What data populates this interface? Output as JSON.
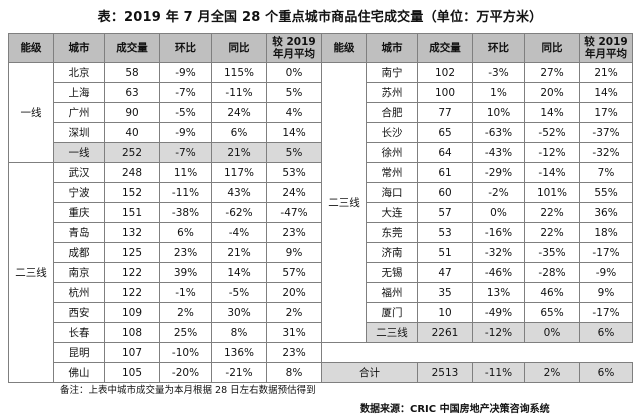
{
  "title": "表：2019 年 7 月全国 28 个重点城市商品住宅成交量（单位：万平方米）",
  "headers": [
    "能级",
    "城市",
    "成交量",
    "环比",
    "同比",
    "较 2019 年月平均"
  ],
  "left": [
    {
      "tier": "一线",
      "city": "北京",
      "vol": "58",
      "mom": "-9%",
      "yoy": "115%",
      "avg": "0%"
    },
    {
      "tier": "",
      "city": "上海",
      "vol": "63",
      "mom": "-7%",
      "yoy": "-11%",
      "avg": "5%"
    },
    {
      "tier": "",
      "city": "广州",
      "vol": "90",
      "mom": "-5%",
      "yoy": "24%",
      "avg": "4%"
    },
    {
      "tier": "",
      "city": "深圳",
      "vol": "40",
      "mom": "-9%",
      "yoy": "6%",
      "avg": "14%"
    },
    {
      "tier": "",
      "city": "一线",
      "vol": "252",
      "mom": "-7%",
      "yoy": "21%",
      "avg": "5%"
    },
    {
      "tier": "二三线",
      "city": "武汉",
      "vol": "248",
      "mom": "11%",
      "yoy": "117%",
      "avg": "53%"
    },
    {
      "tier": "",
      "city": "宁波",
      "vol": "152",
      "mom": "-11%",
      "yoy": "43%",
      "avg": "24%"
    },
    {
      "tier": "",
      "city": "重庆",
      "vol": "151",
      "mom": "-38%",
      "yoy": "-62%",
      "avg": "-47%"
    },
    {
      "tier": "",
      "city": "青岛",
      "vol": "132",
      "mom": "6%",
      "yoy": "-4%",
      "avg": "23%"
    },
    {
      "tier": "",
      "city": "成都",
      "vol": "125",
      "mom": "23%",
      "yoy": "21%",
      "avg": "9%"
    },
    {
      "tier": "",
      "city": "南京",
      "vol": "122",
      "mom": "39%",
      "yoy": "14%",
      "avg": "57%"
    },
    {
      "tier": "",
      "city": "杭州",
      "vol": "122",
      "mom": "-1%",
      "yoy": "-5%",
      "avg": "20%"
    },
    {
      "tier": "",
      "city": "西安",
      "vol": "109",
      "mom": "2%",
      "yoy": "30%",
      "avg": "2%"
    },
    {
      "tier": "",
      "city": "长春",
      "vol": "108",
      "mom": "25%",
      "yoy": "8%",
      "avg": "31%"
    },
    {
      "tier": "",
      "city": "昆明",
      "vol": "107",
      "mom": "-10%",
      "yoy": "136%",
      "avg": "23%"
    },
    {
      "tier": "",
      "city": "佛山",
      "vol": "105",
      "mom": "-20%",
      "yoy": "-21%",
      "avg": "8%"
    }
  ],
  "right": [
    {
      "tier": "",
      "city": "南宁",
      "vol": "102",
      "mom": "-3%",
      "yoy": "27%",
      "avg": "21%"
    },
    {
      "tier": "",
      "city": "苏州",
      "vol": "100",
      "mom": "1%",
      "yoy": "20%",
      "avg": "14%"
    },
    {
      "tier": "",
      "city": "合肥",
      "vol": "77",
      "mom": "10%",
      "yoy": "14%",
      "avg": "17%"
    },
    {
      "tier": "",
      "city": "长沙",
      "vol": "65",
      "mom": "-63%",
      "yoy": "-52%",
      "avg": "-37%"
    },
    {
      "tier": "",
      "city": "徐州",
      "vol": "64",
      "mom": "-43%",
      "yoy": "-12%",
      "avg": "-32%"
    },
    {
      "tier": "二三线",
      "city": "常州",
      "vol": "61",
      "mom": "-29%",
      "yoy": "-14%",
      "avg": "7%"
    },
    {
      "tier": "",
      "city": "海口",
      "vol": "60",
      "mom": "-2%",
      "yoy": "101%",
      "avg": "55%"
    },
    {
      "tier": "",
      "city": "大连",
      "vol": "57",
      "mom": "0%",
      "yoy": "22%",
      "avg": "36%"
    },
    {
      "tier": "",
      "city": "东莞",
      "vol": "53",
      "mom": "-16%",
      "yoy": "22%",
      "avg": "18%"
    },
    {
      "tier": "",
      "city": "济南",
      "vol": "51",
      "mom": "-32%",
      "yoy": "-35%",
      "avg": "-17%"
    },
    {
      "tier": "",
      "city": "无锡",
      "vol": "47",
      "mom": "-46%",
      "yoy": "-28%",
      "avg": "-9%"
    },
    {
      "tier": "",
      "city": "福州",
      "vol": "35",
      "mom": "13%",
      "yoy": "46%",
      "avg": "9%"
    },
    {
      "tier": "",
      "city": "厦门",
      "vol": "10",
      "mom": "-49%",
      "yoy": "65%",
      "avg": "-17%"
    }
  ],
  "subtotal": {
    "label": "二三线",
    "vol": "2261",
    "mom": "-12%",
    "yoy": "0%",
    "avg": "6%"
  },
  "total": {
    "label": "合计",
    "vol": "2513",
    "mom": "-11%",
    "yoy": "2%",
    "avg": "6%"
  },
  "note": "备注：上表中城市成交量为本月根据 28 日左右数据预估得到",
  "source": "数据来源：CRIC 中国房地产决策咨询系统"
}
